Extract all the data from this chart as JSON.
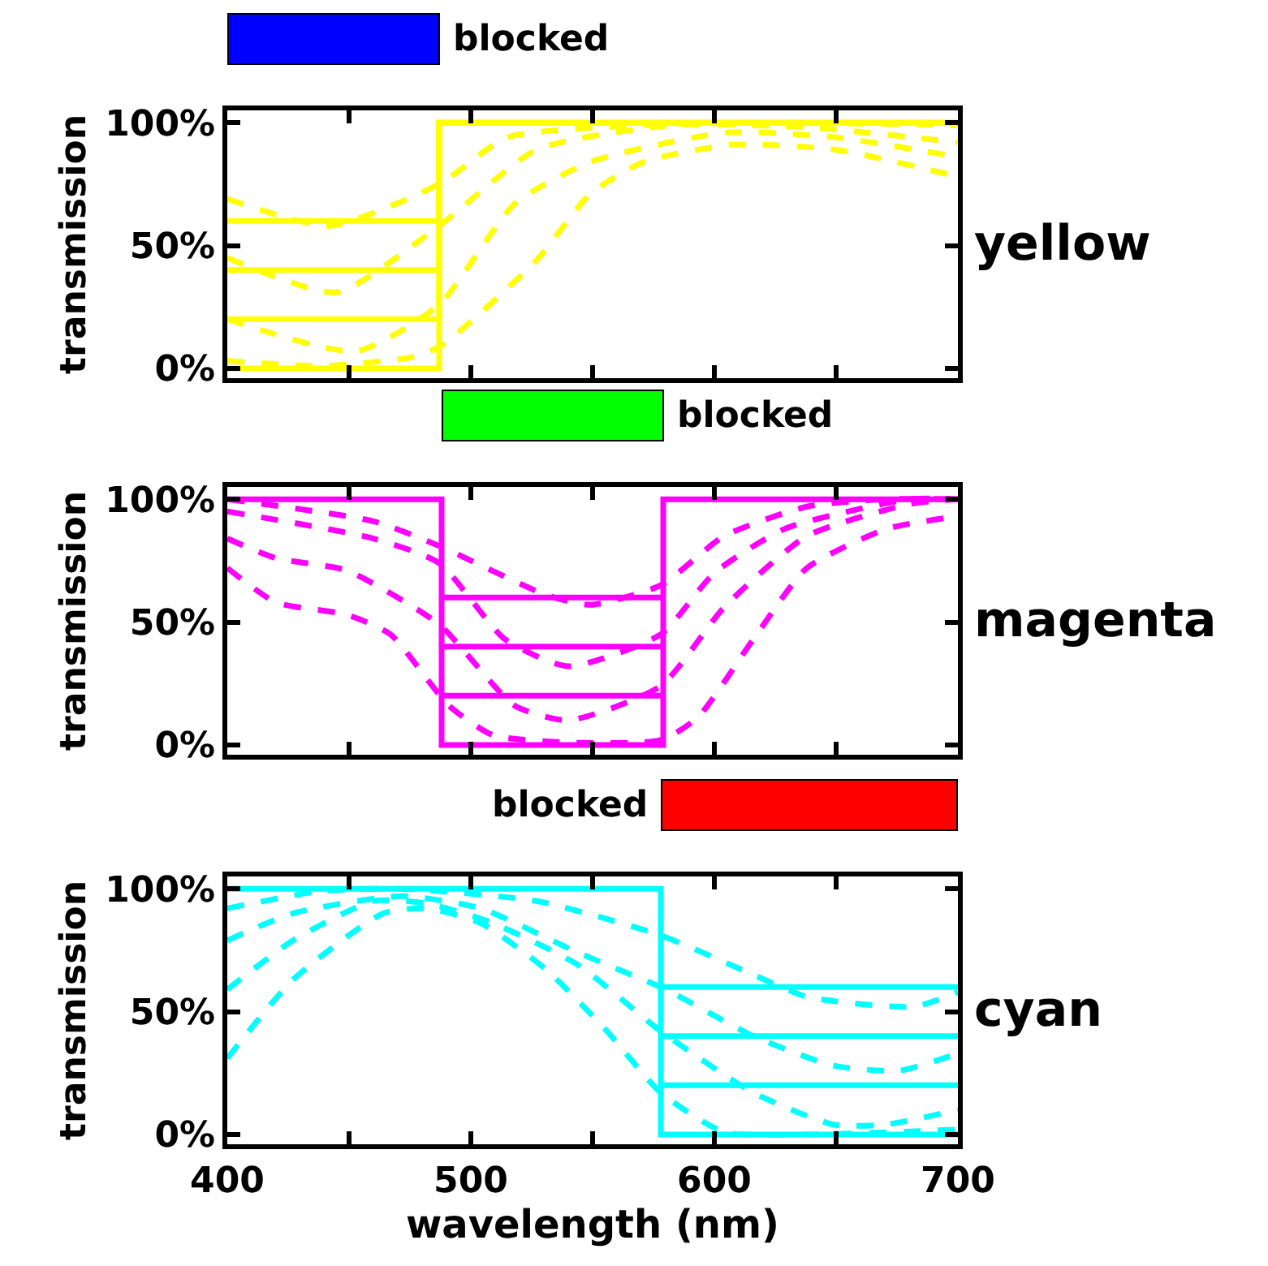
{
  "chart_data": [
    {
      "type": "line",
      "ylabel": "transmission",
      "annotations": [
        "blocked",
        "yellow"
      ],
      "tick_labels": "y",
      "xlim": [
        400,
        700
      ],
      "xticks": [
        400,
        {
          "value": 450,
          "label": null
        },
        500,
        {
          "value": 550,
          "label": null
        },
        600,
        {
          "value": 650,
          "label": null
        },
        700
      ],
      "ylim": [
        -4,
        105
      ],
      "yticks": [
        {
          "value": 0,
          "label": "0%"
        },
        {
          "value": 50,
          "label": "50%"
        },
        {
          "value": 100,
          "label": "100%"
        }
      ],
      "series": [
        {
          "color": "#ffff00",
          "line_style": "solid",
          "x": [
            400,
            487,
            487,
            700
          ],
          "values": [
            0,
            0,
            100,
            100
          ]
        },
        {
          "color": "#ffff00",
          "line_style": "solid",
          "x": [
            400,
            487,
            487,
            700
          ],
          "values": [
            20,
            20,
            100,
            100
          ]
        },
        {
          "color": "#ffff00",
          "line_style": "solid",
          "x": [
            400,
            487,
            487,
            700
          ],
          "values": [
            40,
            40,
            100,
            100
          ]
        },
        {
          "color": "#ffff00",
          "line_style": "solid",
          "x": [
            400,
            487,
            487,
            700
          ],
          "values": [
            60,
            60,
            100,
            100
          ]
        },
        {
          "color": "#ffff00",
          "line_style": "dashed",
          "x": [
            400,
            442,
            487,
            515,
            571,
            620,
            700
          ],
          "values": [
            69,
            58,
            75,
            94,
            99,
            100,
            99
          ]
        },
        {
          "color": "#ffff00",
          "line_style": "dashed",
          "x": [
            400,
            445,
            487,
            527,
            583,
            640,
            700
          ],
          "values": [
            45,
            31,
            58,
            89,
            99,
            98,
            92
          ]
        },
        {
          "color": "#ffff00",
          "line_style": "dashed",
          "x": [
            400,
            453,
            487,
            518,
            549,
            605,
            650,
            700
          ],
          "values": [
            20,
            7,
            26,
            67,
            84,
            96,
            94,
            86
          ]
        },
        {
          "color": "#ffff00",
          "line_style": "dashed",
          "x": [
            400,
            440,
            478,
            489,
            527,
            549,
            571,
            607,
            650,
            700
          ],
          "values": [
            3,
            1,
            5,
            10,
            44,
            71,
            84,
            91,
            89,
            78
          ]
        }
      ]
    },
    {
      "type": "line",
      "ylabel": "transmission",
      "annotations": [
        "blocked",
        "magenta"
      ],
      "tick_labels": "y",
      "xlim": [
        400,
        700
      ],
      "xticks": [
        400,
        {
          "value": 450,
          "label": null
        },
        500,
        {
          "value": 550,
          "label": null
        },
        600,
        {
          "value": 650,
          "label": null
        },
        700
      ],
      "ylim": [
        -4,
        105
      ],
      "yticks": [
        {
          "value": 0,
          "label": "0%"
        },
        {
          "value": 50,
          "label": "50%"
        },
        {
          "value": 100,
          "label": "100%"
        }
      ],
      "series": [
        {
          "color": "#ff00ff",
          "line_style": "solid",
          "x": [
            400,
            488,
            488,
            579,
            579,
            700
          ],
          "values": [
            100,
            100,
            0,
            0,
            100,
            100
          ]
        },
        {
          "color": "#ff00ff",
          "line_style": "solid",
          "x": [
            488,
            579
          ],
          "values": [
            20,
            20
          ]
        },
        {
          "color": "#ff00ff",
          "line_style": "solid",
          "x": [
            488,
            579
          ],
          "values": [
            40,
            40
          ]
        },
        {
          "color": "#ff00ff",
          "line_style": "solid",
          "x": [
            488,
            579
          ],
          "values": [
            60,
            60
          ]
        },
        {
          "color": "#ff00ff",
          "line_style": "dashed",
          "x": [
            400,
            460,
            487,
            531,
            549,
            578,
            604,
            638,
            670,
            700
          ],
          "values": [
            100,
            91,
            81,
            61,
            57,
            65,
            85,
            97,
            100,
            100
          ]
        },
        {
          "color": "#ff00ff",
          "line_style": "dashed",
          "x": [
            400,
            460,
            487,
            514,
            540,
            578,
            600,
            629,
            680,
            700
          ],
          "values": [
            95,
            84,
            74,
            43,
            32,
            45,
            70,
            88,
            100,
            100
          ]
        },
        {
          "color": "#ff00ff",
          "line_style": "dashed",
          "x": [
            400,
            420,
            449,
            487,
            518,
            540,
            578,
            604,
            638,
            680,
            700
          ],
          "values": [
            84,
            76,
            71,
            49,
            16,
            10,
            24,
            56,
            85,
            98,
            100
          ]
        },
        {
          "color": "#ff00ff",
          "line_style": "dashed",
          "x": [
            400,
            420,
            449,
            467,
            491,
            509,
            540,
            578,
            593,
            616,
            638,
            671,
            700
          ],
          "values": [
            72,
            58,
            53,
            45,
            16,
            4,
            1,
            2,
            11,
            43,
            72,
            88,
            93
          ]
        }
      ]
    },
    {
      "type": "line",
      "ylabel": "transmission",
      "xlabel": "wavelength (nm)",
      "annotations": [
        "blocked",
        "cyan"
      ],
      "xlim": [
        400,
        700
      ],
      "xticks": [
        400,
        {
          "value": 450,
          "label": null
        },
        500,
        {
          "value": 550,
          "label": null
        },
        600,
        {
          "value": 650,
          "label": null
        },
        700
      ],
      "ylim": [
        -4,
        105
      ],
      "yticks": [
        {
          "value": 0,
          "label": "0%"
        },
        {
          "value": 50,
          "label": "50%"
        },
        {
          "value": 100,
          "label": "100%"
        }
      ],
      "series": [
        {
          "color": "#00ffff",
          "line_style": "solid",
          "x": [
            400,
            578,
            578,
            700
          ],
          "values": [
            100,
            100,
            0,
            0
          ]
        },
        {
          "color": "#00ffff",
          "line_style": "solid",
          "x": [
            578,
            700
          ],
          "values": [
            20,
            20
          ]
        },
        {
          "color": "#00ffff",
          "line_style": "solid",
          "x": [
            578,
            700
          ],
          "values": [
            40,
            40
          ]
        },
        {
          "color": "#00ffff",
          "line_style": "solid",
          "x": [
            578,
            700
          ],
          "values": [
            60,
            60
          ]
        },
        {
          "color": "#00ffff",
          "line_style": "dashed",
          "x": [
            400,
            438,
            470,
            527,
            578,
            616,
            638,
            682,
            700
          ],
          "values": [
            92,
            99,
            100,
            95,
            81,
            65,
            56,
            52,
            58
          ]
        },
        {
          "color": "#00ffff",
          "line_style": "dashed",
          "x": [
            400,
            427,
            471,
            504,
            544,
            580,
            616,
            649,
            676,
            700
          ],
          "values": [
            79,
            90,
            97,
            92,
            74,
            59,
            40,
            28,
            26,
            33
          ]
        },
        {
          "color": "#00ffff",
          "line_style": "dashed",
          "x": [
            400,
            427,
            460,
            482,
            509,
            544,
            578,
            616,
            649,
            670,
            700
          ],
          "values": [
            59,
            79,
            95,
            94,
            86,
            69,
            42,
            17,
            4,
            4,
            10
          ]
        },
        {
          "color": "#00ffff",
          "line_style": "dashed",
          "x": [
            400,
            427,
            464,
            482,
            504,
            531,
            555,
            578,
            604,
            640,
            700
          ],
          "values": [
            31,
            63,
            90,
            92,
            86,
            67,
            43,
            17,
            1,
            0,
            2
          ]
        }
      ]
    }
  ]
}
